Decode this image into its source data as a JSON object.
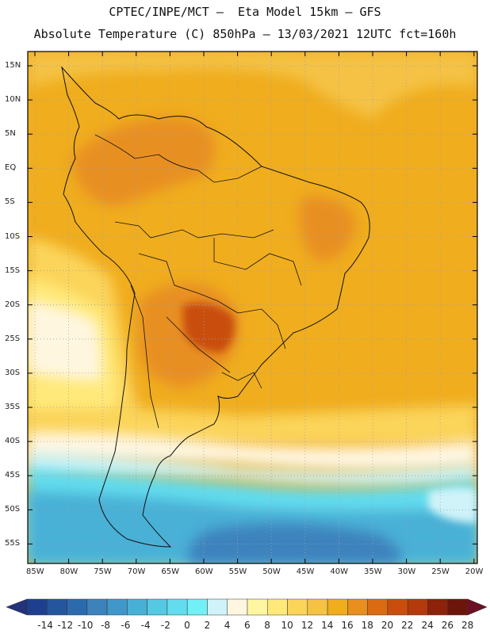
{
  "header": {
    "line1": "CPTEC/INPE/MCT –  Eta Model 15km – GFS",
    "line2": "Absolute Temperature (C) 850hPa – 13/03/2021 12UTC fct=160h"
  },
  "axes": {
    "lat_labels": [
      "15N",
      "10N",
      "5N",
      "EQ",
      "5S",
      "10S",
      "15S",
      "20S",
      "25S",
      "30S",
      "35S",
      "40S",
      "45S",
      "50S",
      "55S"
    ],
    "lon_labels": [
      "85W",
      "80W",
      "75W",
      "70W",
      "65W",
      "60W",
      "55W",
      "50W",
      "45W",
      "40W",
      "35W",
      "30W",
      "25W",
      "20W"
    ]
  },
  "colorbar": {
    "labels": [
      "-14",
      "-12",
      "-10",
      "-8",
      "-6",
      "-4",
      "-2",
      "0",
      "2",
      "4",
      "6",
      "8",
      "10",
      "12",
      "14",
      "16",
      "18",
      "20",
      "22",
      "24",
      "26",
      "28"
    ],
    "colors": [
      "#1e3f8f",
      "#25559e",
      "#2c6aae",
      "#3c82bd",
      "#3f98c9",
      "#48b0d6",
      "#55c8e2",
      "#62dcee",
      "#72f0f6",
      "#cff3f8",
      "#fff6e0",
      "#fff7a0",
      "#ffe97a",
      "#fbd45a",
      "#f5c244",
      "#f0ad1e",
      "#e88f20",
      "#db6b12",
      "#c94e0c",
      "#b33a0a",
      "#8c2209",
      "#6e150b"
    ],
    "under_color": "#24327a",
    "over_color": "#6e0f24"
  },
  "regions": [
    {
      "name": "south-atlantic-ocean",
      "color": "#f0ad1e"
    },
    {
      "name": "southern-ocean",
      "color": "#48b0d6"
    },
    {
      "name": "pacific-coast-band",
      "color": "#fff6e0"
    },
    {
      "name": "paraguay-hotspot",
      "color": "#c94e0c"
    }
  ]
}
